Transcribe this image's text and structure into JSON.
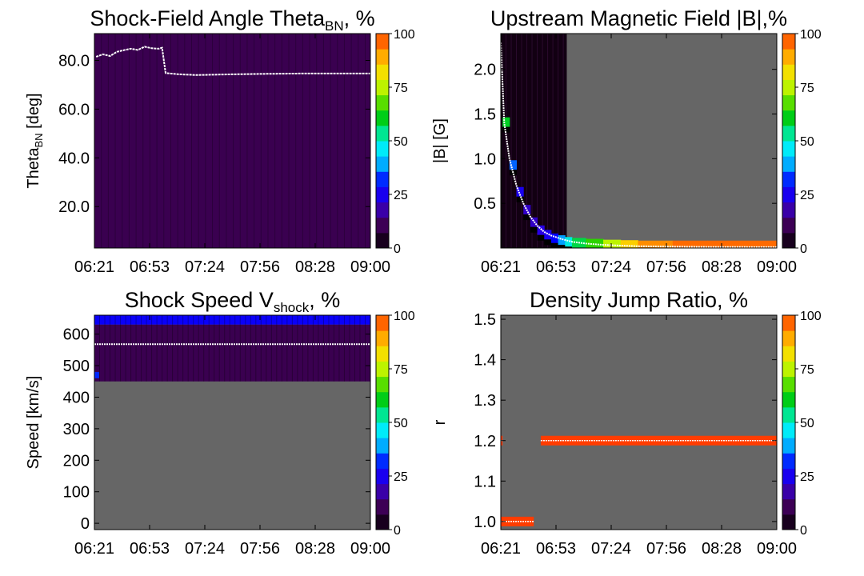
{
  "figure": {
    "background": "#ffffff",
    "empty_bin_color": "#666666",
    "overlay_line_color": "#ffffff"
  },
  "chart_data": [
    {
      "type": "heatmap",
      "title": "Shock-Field Angle Theta",
      "title_subscript": "BN",
      "title_suffix": ", %",
      "ylabel": "Theta",
      "ylabel_subscript": "BN",
      "ylabel_suffix": " [deg]",
      "x_tick_labels": [
        "06:21",
        "06:53",
        "07:24",
        "07:56",
        "08:28",
        "09:00"
      ],
      "xlim_minutes": [
        381,
        540
      ],
      "ylim": [
        3,
        91
      ],
      "y_ticks": [
        20,
        40,
        60,
        80
      ],
      "y_tick_labels": [
        "20.0",
        "40.0",
        "60.0",
        "80.0"
      ],
      "colorbar": {
        "ticks": [
          "0",
          "25",
          "50",
          "75",
          "100"
        ],
        "range": [
          0,
          100
        ]
      },
      "fill": {
        "ymin": 3,
        "ymax": 91,
        "base_percent": 10
      },
      "median_line": [
        [
          382,
          81.5
        ],
        [
          386,
          82.5
        ],
        [
          390,
          81.8
        ],
        [
          394,
          83.5
        ],
        [
          398,
          84.2
        ],
        [
          402,
          84.8
        ],
        [
          406,
          84.3
        ],
        [
          410,
          85.6
        ],
        [
          414,
          85.0
        ],
        [
          418,
          84.8
        ],
        [
          420,
          85.2
        ],
        [
          422,
          74.8
        ],
        [
          430,
          74.3
        ],
        [
          440,
          74.0
        ],
        [
          460,
          74.3
        ],
        [
          480,
          74.5
        ],
        [
          500,
          74.6
        ],
        [
          520,
          74.6
        ],
        [
          540,
          74.6
        ]
      ]
    },
    {
      "type": "heatmap",
      "title": "Upstream Magnetic Field |B|,%",
      "ylabel": "|B| [G]",
      "x_tick_labels": [
        "06:21",
        "06:53",
        "07:24",
        "07:56",
        "08:28",
        "09:00"
      ],
      "xlim_minutes": [
        381,
        540
      ],
      "ylim": [
        0,
        2.4
      ],
      "y_ticks": [
        0.5,
        1.0,
        1.5,
        2.0
      ],
      "y_tick_labels": [
        "0.5",
        "1.0",
        "1.5",
        "2.0"
      ],
      "colorbar": {
        "ticks": [
          "0",
          "25",
          "50",
          "75",
          "100"
        ],
        "range": [
          0,
          100
        ]
      },
      "filled_region_end_minute": 419,
      "peak_band": [
        [
          382,
          1.4
        ],
        [
          386,
          0.92
        ],
        [
          390,
          0.62
        ],
        [
          394,
          0.42
        ],
        [
          398,
          0.28
        ],
        [
          402,
          0.19
        ],
        [
          406,
          0.14
        ],
        [
          410,
          0.1
        ],
        [
          414,
          0.08
        ],
        [
          418,
          0.06
        ],
        [
          422,
          0.05
        ],
        [
          430,
          0.04
        ],
        [
          440,
          0.03
        ],
        [
          450,
          0.025
        ],
        [
          460,
          0.02
        ],
        [
          480,
          0.02
        ],
        [
          500,
          0.02
        ],
        [
          520,
          0.02
        ],
        [
          540,
          0.02
        ]
      ],
      "peak_percent": [
        60,
        35,
        25,
        20,
        20,
        22,
        25,
        30,
        38,
        48,
        58,
        65,
        75,
        85,
        93,
        96,
        96,
        96,
        96
      ],
      "median_line": [
        [
          381,
          2.3
        ],
        [
          383,
          1.4
        ],
        [
          386,
          1.0
        ],
        [
          390,
          0.7
        ],
        [
          394,
          0.5
        ],
        [
          398,
          0.35
        ],
        [
          402,
          0.25
        ],
        [
          406,
          0.18
        ],
        [
          410,
          0.14
        ],
        [
          416,
          0.1
        ],
        [
          422,
          0.07
        ],
        [
          430,
          0.05
        ],
        [
          440,
          0.035
        ],
        [
          460,
          0.02
        ],
        [
          480,
          0.015
        ],
        [
          500,
          0.012
        ],
        [
          540,
          0.01
        ]
      ]
    },
    {
      "type": "heatmap",
      "title": "Shock Speed V",
      "title_subscript": "shock",
      "title_suffix": ", %",
      "ylabel": "Speed [km/s]",
      "x_tick_labels": [
        "06:21",
        "06:53",
        "07:24",
        "07:56",
        "08:28",
        "09:00"
      ],
      "xlim_minutes": [
        381,
        540
      ],
      "ylim": [
        -20,
        660
      ],
      "y_ticks": [
        0,
        100,
        200,
        300,
        400,
        500,
        600
      ],
      "y_tick_labels": [
        "0",
        "100",
        "200",
        "300",
        "400",
        "500",
        "600"
      ],
      "colorbar": {
        "ticks": [
          "0",
          "25",
          "50",
          "75",
          "100"
        ],
        "range": [
          0,
          100
        ]
      },
      "speed_bands": [
        {
          "ymin": 630,
          "ymax": 660,
          "percent": 28
        },
        {
          "ymin": 450,
          "ymax": 630,
          "percent": 10
        }
      ],
      "median_line": [
        [
          381,
          568
        ],
        [
          540,
          568
        ]
      ]
    },
    {
      "type": "heatmap",
      "title": "Density Jump Ratio, %",
      "ylabel": "r",
      "x_tick_labels": [
        "06:21",
        "06:53",
        "07:24",
        "07:56",
        "08:28",
        "09:00"
      ],
      "xlim_minutes": [
        381,
        540
      ],
      "ylim": [
        0.98,
        1.51
      ],
      "y_ticks": [
        1.0,
        1.1,
        1.2,
        1.3,
        1.4,
        1.5
      ],
      "y_tick_labels": [
        "1.0",
        "1.1",
        "1.2",
        "1.3",
        "1.4",
        "1.5"
      ],
      "colorbar": {
        "ticks": [
          "0",
          "25",
          "50",
          "75",
          "100"
        ],
        "range": [
          0,
          100
        ]
      },
      "bands": [
        {
          "x_from": 381,
          "x_to": 382,
          "value": 1.2,
          "percent": 100
        },
        {
          "x_from": 381,
          "x_to": 400,
          "value": 1.0,
          "percent": 100
        },
        {
          "x_from": 404,
          "x_to": 540,
          "value": 1.2,
          "percent": 100
        }
      ]
    }
  ]
}
